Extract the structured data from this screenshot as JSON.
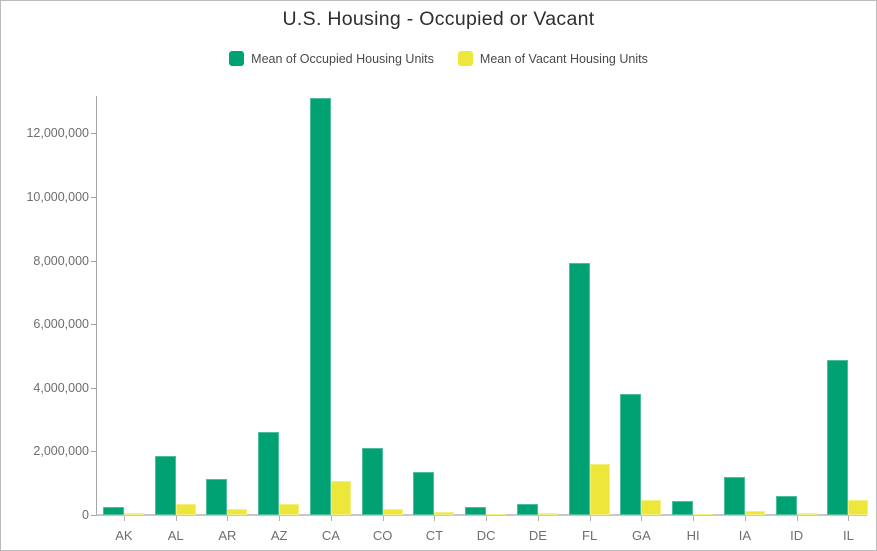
{
  "title": "U.S. Housing - Occupied or Vacant",
  "legend": [
    {
      "label": "Mean of Occupied Housing Units",
      "color": "#00a173",
      "swatch_name": "occupied-swatch"
    },
    {
      "label": "Mean of Vacant Housing Units",
      "color": "#ede73c",
      "swatch_name": "vacant-swatch"
    }
  ],
  "chart_data": {
    "type": "bar",
    "title": "U.S. Housing - Occupied or Vacant",
    "xlabel": "",
    "ylabel": "",
    "categories": [
      "AK",
      "AL",
      "AR",
      "AZ",
      "CA",
      "CO",
      "CT",
      "DC",
      "DE",
      "FL",
      "GA",
      "HI",
      "IA",
      "ID",
      "IL"
    ],
    "series": [
      {
        "name": "Mean of Occupied Housing Units",
        "color": "#00a173",
        "values": [
          240000,
          1850000,
          1130000,
          2600000,
          13110000,
          2100000,
          1340000,
          260000,
          340000,
          7920000,
          3800000,
          440000,
          1210000,
          600000,
          4870000
        ]
      },
      {
        "name": "Mean of Vacant Housing Units",
        "color": "#ede73c",
        "values": [
          60000,
          340000,
          190000,
          360000,
          1070000,
          190000,
          105000,
          30000,
          65000,
          1590000,
          460000,
          42000,
          115000,
          55000,
          470000
        ]
      }
    ],
    "ylim": [
      0,
      13200000
    ],
    "yticks": [
      0,
      2000000,
      4000000,
      6000000,
      8000000,
      10000000,
      12000000
    ],
    "ytick_labels": [
      "0",
      "2,000,000",
      "4,000,000",
      "6,000,000",
      "8,000,000",
      "10,000,000",
      "12,000,000"
    ],
    "grid": false,
    "legend_position": "top"
  },
  "colors": {
    "axis_line": "#a6a6a6",
    "baseline": "#c8c8c8",
    "tick_label": "#6e6e6e",
    "title_text": "#2e2e2e",
    "legend_text": "#4a4a4a",
    "border": "#bcbcbc"
  }
}
